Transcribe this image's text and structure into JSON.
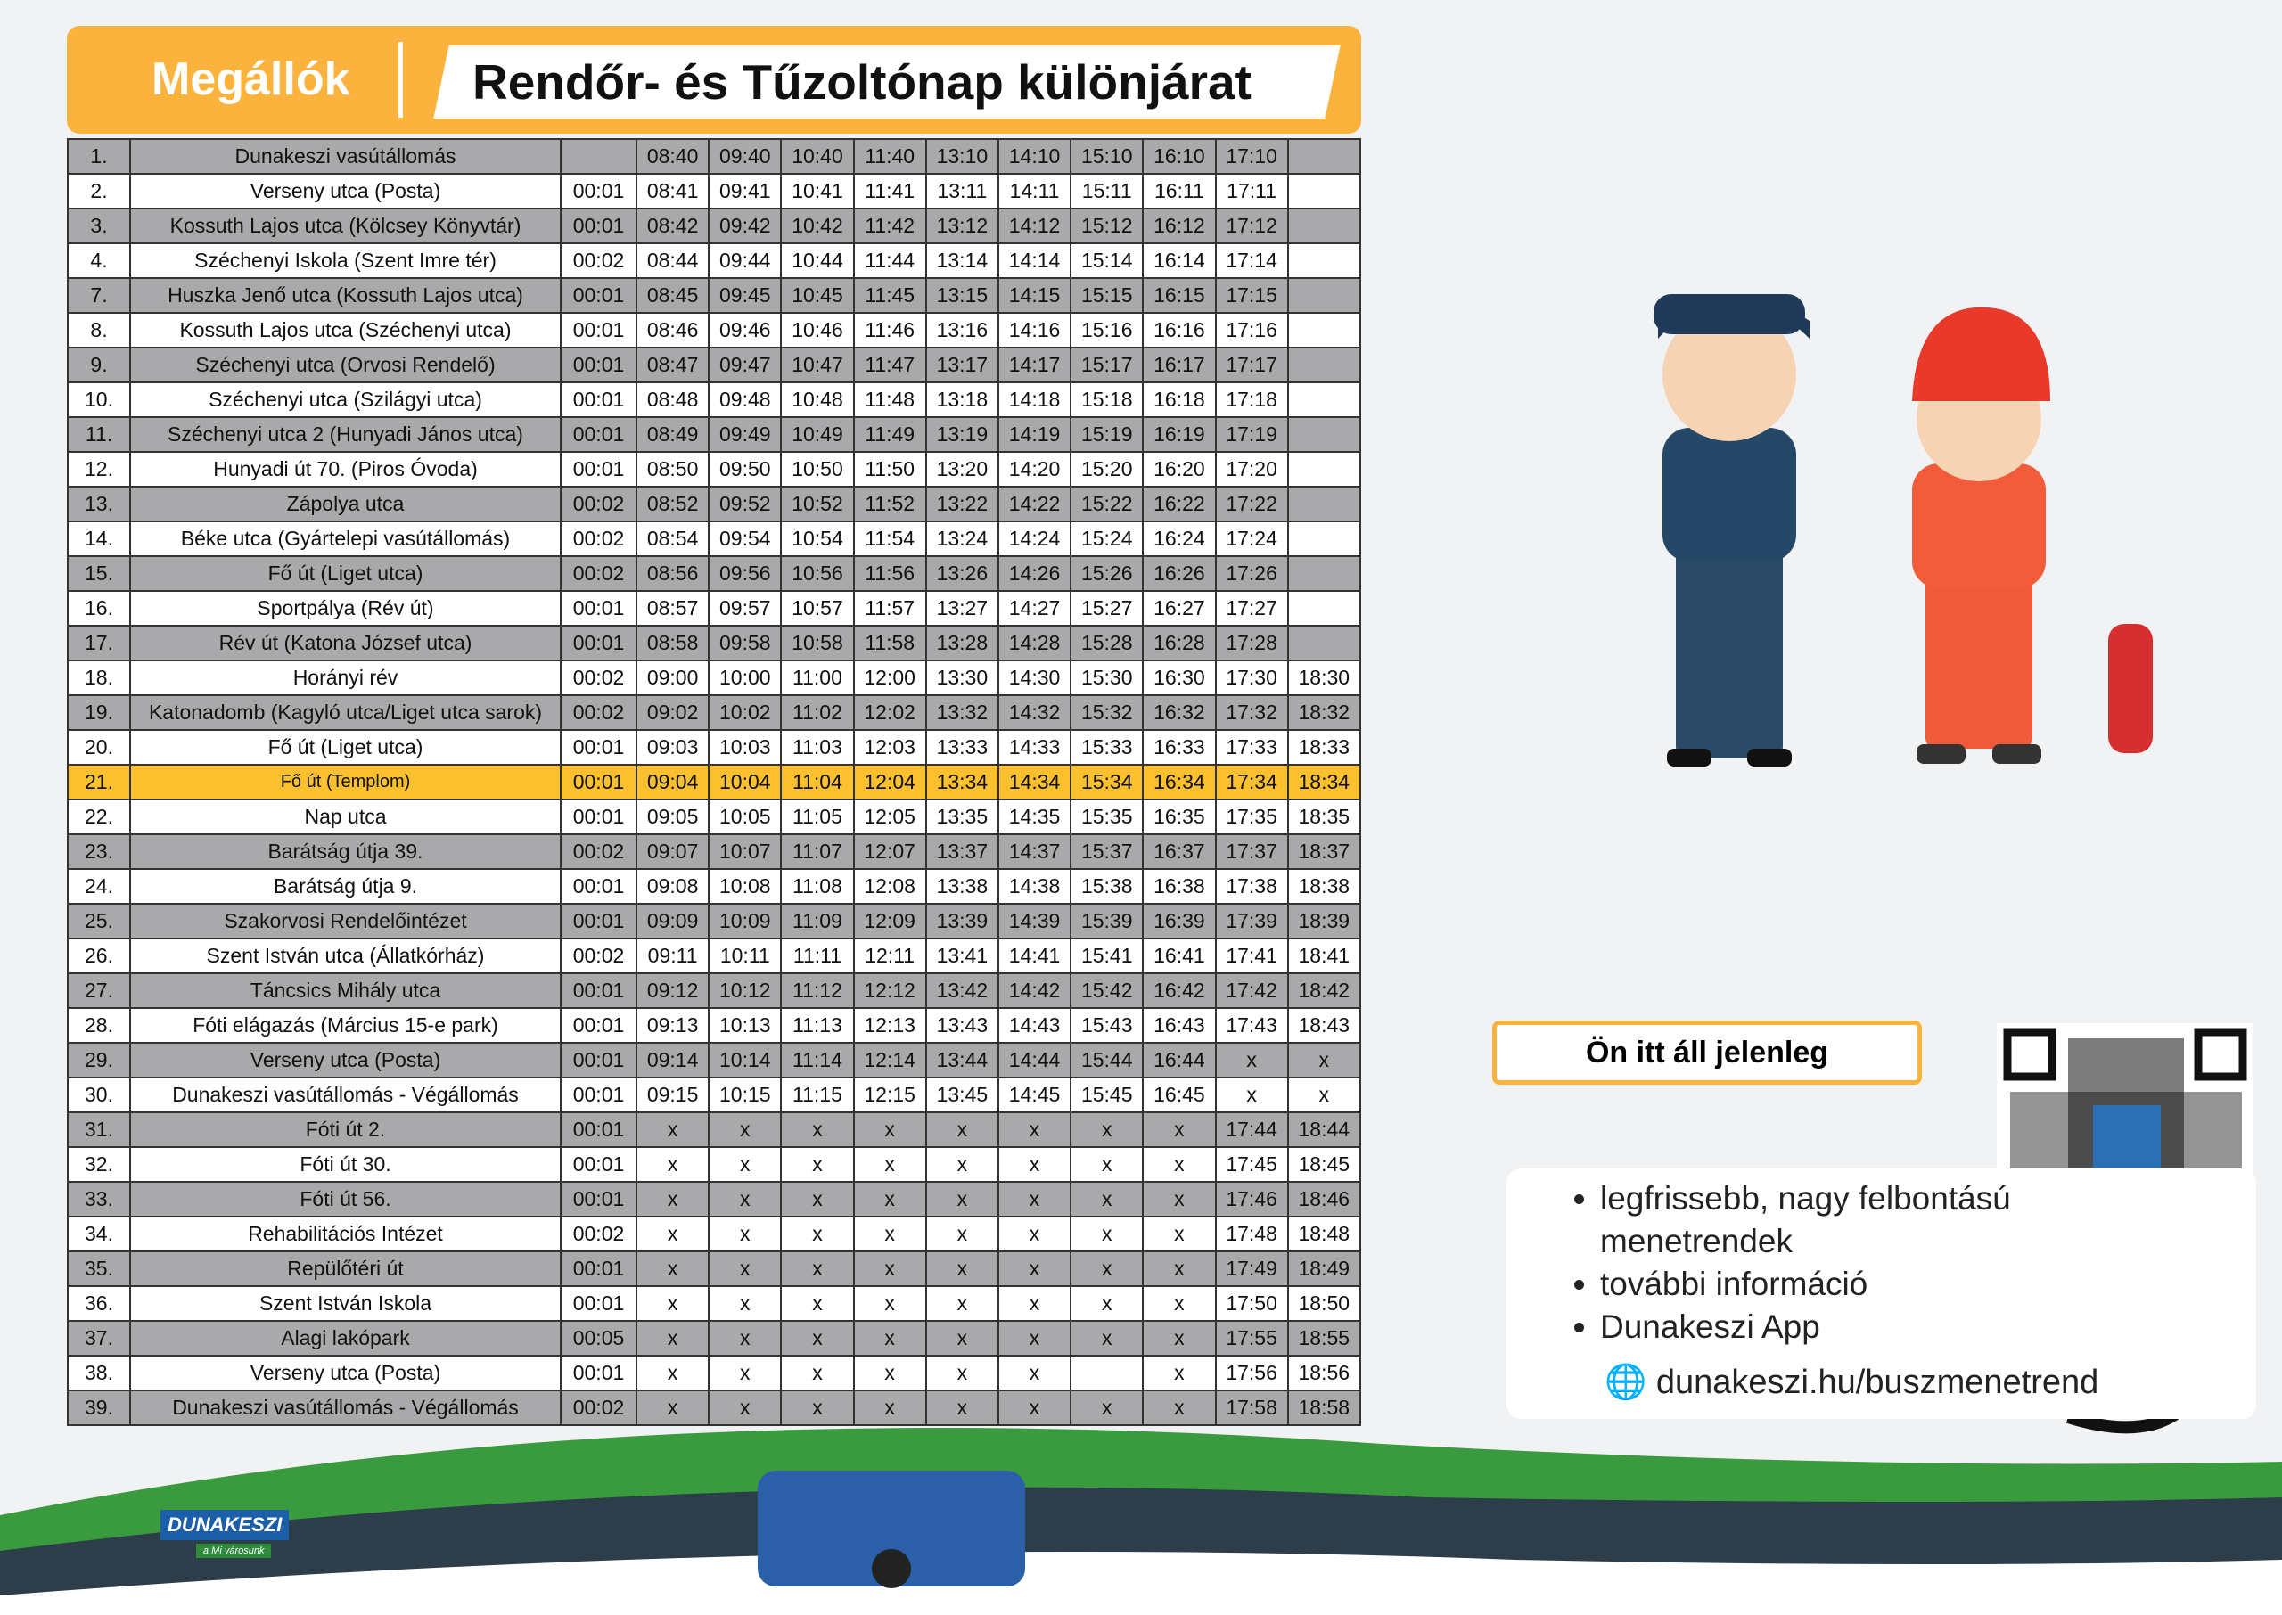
{
  "header": {
    "left": "Megállók",
    "title": "Rendőr- és Tűzoltónap különjárat"
  },
  "table": {
    "highlighted_row_index": 18,
    "rows": [
      [
        "1.",
        "Dunakeszi vasútállomás",
        null,
        "08:40",
        "09:40",
        "10:40",
        "11:40",
        "13:10",
        "14:10",
        "15:10",
        "16:10",
        "17:10",
        null
      ],
      [
        "2.",
        "Verseny utca (Posta)",
        "00:01",
        "08:41",
        "09:41",
        "10:41",
        "11:41",
        "13:11",
        "14:11",
        "15:11",
        "16:11",
        "17:11",
        null
      ],
      [
        "3.",
        "Kossuth Lajos utca (Kölcsey Könyvtár)",
        "00:01",
        "08:42",
        "09:42",
        "10:42",
        "11:42",
        "13:12",
        "14:12",
        "15:12",
        "16:12",
        "17:12",
        null
      ],
      [
        "4.",
        "Széchenyi Iskola (Szent Imre tér)",
        "00:02",
        "08:44",
        "09:44",
        "10:44",
        "11:44",
        "13:14",
        "14:14",
        "15:14",
        "16:14",
        "17:14",
        null
      ],
      [
        "7.",
        "Huszka Jenő utca (Kossuth Lajos utca)",
        "00:01",
        "08:45",
        "09:45",
        "10:45",
        "11:45",
        "13:15",
        "14:15",
        "15:15",
        "16:15",
        "17:15",
        null
      ],
      [
        "8.",
        "Kossuth Lajos utca (Széchenyi utca)",
        "00:01",
        "08:46",
        "09:46",
        "10:46",
        "11:46",
        "13:16",
        "14:16",
        "15:16",
        "16:16",
        "17:16",
        null
      ],
      [
        "9.",
        "Széchenyi utca (Orvosi Rendelő)",
        "00:01",
        "08:47",
        "09:47",
        "10:47",
        "11:47",
        "13:17",
        "14:17",
        "15:17",
        "16:17",
        "17:17",
        null
      ],
      [
        "10.",
        "Széchenyi utca (Szilágyi utca)",
        "00:01",
        "08:48",
        "09:48",
        "10:48",
        "11:48",
        "13:18",
        "14:18",
        "15:18",
        "16:18",
        "17:18",
        null
      ],
      [
        "11.",
        "Széchenyi utca 2 (Hunyadi János utca)",
        "00:01",
        "08:49",
        "09:49",
        "10:49",
        "11:49",
        "13:19",
        "14:19",
        "15:19",
        "16:19",
        "17:19",
        null
      ],
      [
        "12.",
        "Hunyadi út 70. (Piros Óvoda)",
        "00:01",
        "08:50",
        "09:50",
        "10:50",
        "11:50",
        "13:20",
        "14:20",
        "15:20",
        "16:20",
        "17:20",
        null
      ],
      [
        "13.",
        "Zápolya utca",
        "00:02",
        "08:52",
        "09:52",
        "10:52",
        "11:52",
        "13:22",
        "14:22",
        "15:22",
        "16:22",
        "17:22",
        null
      ],
      [
        "14.",
        "Béke utca (Gyártelepi vasútállomás)",
        "00:02",
        "08:54",
        "09:54",
        "10:54",
        "11:54",
        "13:24",
        "14:24",
        "15:24",
        "16:24",
        "17:24",
        null
      ],
      [
        "15.",
        "Fő út (Liget utca)",
        "00:02",
        "08:56",
        "09:56",
        "10:56",
        "11:56",
        "13:26",
        "14:26",
        "15:26",
        "16:26",
        "17:26",
        null
      ],
      [
        "16.",
        "Sportpálya (Rév út)",
        "00:01",
        "08:57",
        "09:57",
        "10:57",
        "11:57",
        "13:27",
        "14:27",
        "15:27",
        "16:27",
        "17:27",
        null
      ],
      [
        "17.",
        "Rév út (Katona József utca)",
        "00:01",
        "08:58",
        "09:58",
        "10:58",
        "11:58",
        "13:28",
        "14:28",
        "15:28",
        "16:28",
        "17:28",
        null
      ],
      [
        "18.",
        "Horányi rév",
        "00:02",
        "09:00",
        "10:00",
        "11:00",
        "12:00",
        "13:30",
        "14:30",
        "15:30",
        "16:30",
        "17:30",
        "18:30"
      ],
      [
        "19.",
        "Katonadomb (Kagyló utca/Liget utca sarok)",
        "00:02",
        "09:02",
        "10:02",
        "11:02",
        "12:02",
        "13:32",
        "14:32",
        "15:32",
        "16:32",
        "17:32",
        "18:32"
      ],
      [
        "20.",
        "Fő út (Liget utca)",
        "00:01",
        "09:03",
        "10:03",
        "11:03",
        "12:03",
        "13:33",
        "14:33",
        "15:33",
        "16:33",
        "17:33",
        "18:33"
      ],
      [
        "21.",
        "Fő út (Templom)",
        "00:01",
        "09:04",
        "10:04",
        "11:04",
        "12:04",
        "13:34",
        "14:34",
        "15:34",
        "16:34",
        "17:34",
        "18:34"
      ],
      [
        "22.",
        "Nap utca",
        "00:01",
        "09:05",
        "10:05",
        "11:05",
        "12:05",
        "13:35",
        "14:35",
        "15:35",
        "16:35",
        "17:35",
        "18:35"
      ],
      [
        "23.",
        "Barátság útja 39.",
        "00:02",
        "09:07",
        "10:07",
        "11:07",
        "12:07",
        "13:37",
        "14:37",
        "15:37",
        "16:37",
        "17:37",
        "18:37"
      ],
      [
        "24.",
        "Barátság útja 9.",
        "00:01",
        "09:08",
        "10:08",
        "11:08",
        "12:08",
        "13:38",
        "14:38",
        "15:38",
        "16:38",
        "17:38",
        "18:38"
      ],
      [
        "25.",
        "Szakorvosi Rendelőintézet",
        "00:01",
        "09:09",
        "10:09",
        "11:09",
        "12:09",
        "13:39",
        "14:39",
        "15:39",
        "16:39",
        "17:39",
        "18:39"
      ],
      [
        "26.",
        "Szent István utca (Állatkórház)",
        "00:02",
        "09:11",
        "10:11",
        "11:11",
        "12:11",
        "13:41",
        "14:41",
        "15:41",
        "16:41",
        "17:41",
        "18:41"
      ],
      [
        "27.",
        "Táncsics Mihály utca",
        "00:01",
        "09:12",
        "10:12",
        "11:12",
        "12:12",
        "13:42",
        "14:42",
        "15:42",
        "16:42",
        "17:42",
        "18:42"
      ],
      [
        "28.",
        "Fóti elágazás (Március 15-e park)",
        "00:01",
        "09:13",
        "10:13",
        "11:13",
        "12:13",
        "13:43",
        "14:43",
        "15:43",
        "16:43",
        "17:43",
        "18:43"
      ],
      [
        "29.",
        "Verseny utca (Posta)",
        "00:01",
        "09:14",
        "10:14",
        "11:14",
        "12:14",
        "13:44",
        "14:44",
        "15:44",
        "16:44",
        "x",
        "x"
      ],
      [
        "30.",
        "Dunakeszi vasútállomás - Végállomás",
        "00:01",
        "09:15",
        "10:15",
        "11:15",
        "12:15",
        "13:45",
        "14:45",
        "15:45",
        "16:45",
        "x",
        "x"
      ],
      [
        "31.",
        "Fóti út 2.",
        "00:01",
        "x",
        "x",
        "x",
        "x",
        "x",
        "x",
        "x",
        "x",
        "17:44",
        "18:44"
      ],
      [
        "32.",
        "Fóti út 30.",
        "00:01",
        "x",
        "x",
        "x",
        "x",
        "x",
        "x",
        "x",
        "x",
        "17:45",
        "18:45"
      ],
      [
        "33.",
        "Fóti út 56.",
        "00:01",
        "x",
        "x",
        "x",
        "x",
        "x",
        "x",
        "x",
        "x",
        "17:46",
        "18:46"
      ],
      [
        "34.",
        "Rehabilitációs Intézet",
        "00:02",
        "x",
        "x",
        "x",
        "x",
        "x",
        "x",
        "x",
        "x",
        "17:48",
        "18:48"
      ],
      [
        "35.",
        "Repülőtéri út",
        "00:01",
        "x",
        "x",
        "x",
        "x",
        "x",
        "x",
        "x",
        "x",
        "17:49",
        "18:49"
      ],
      [
        "36.",
        "Szent István Iskola",
        "00:01",
        "x",
        "x",
        "x",
        "x",
        "x",
        "x",
        "x",
        "x",
        "17:50",
        "18:50"
      ],
      [
        "37.",
        "Alagi lakópark",
        "00:05",
        "x",
        "x",
        "x",
        "x",
        "x",
        "x",
        "x",
        "x",
        "17:55",
        "18:55"
      ],
      [
        "38.",
        "Verseny utca (Posta)",
        "00:01",
        "x",
        "x",
        "x",
        "x",
        "x",
        "x",
        null,
        "x",
        "17:56",
        "18:56"
      ],
      [
        "39.",
        "Dunakeszi vasútállomás - Végállomás",
        "00:02",
        "x",
        "x",
        "x",
        "x",
        "x",
        "x",
        "x",
        "x",
        "17:58",
        "18:58"
      ]
    ]
  },
  "info": {
    "location_label": "Ön itt áll jelenleg",
    "bullets": [
      "legfrissebb, nagy felbontású menetrendek",
      "további információ",
      "Dunakeszi App"
    ],
    "url": "dunakeszi.hu/buszmenetrend"
  },
  "logo": {
    "name": "DUNAKESZI",
    "tagline": "a Mi városunk"
  }
}
